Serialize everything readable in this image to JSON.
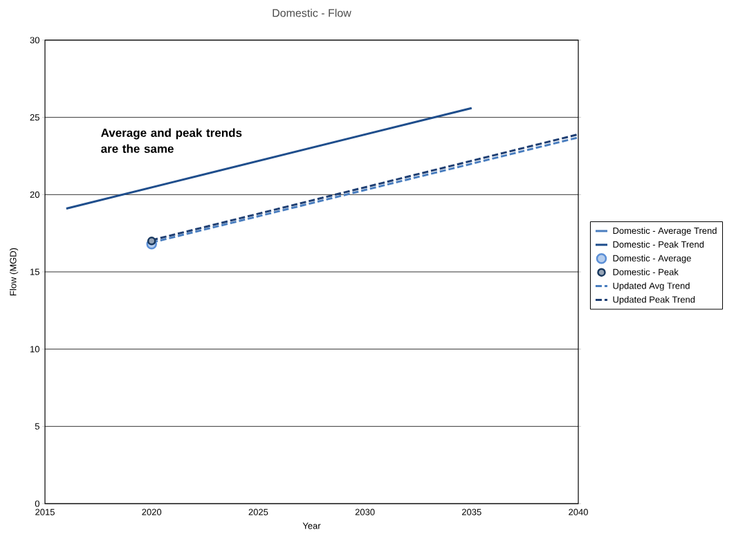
{
  "chart_data": {
    "type": "line",
    "title": "Domestic - Flow",
    "xlabel": "Year",
    "ylabel": "Flow (MGD)",
    "xlim": [
      2015,
      2040
    ],
    "xticks": [
      2015,
      2020,
      2025,
      2030,
      2035,
      2040
    ],
    "ylim": [
      0,
      30
    ],
    "yticks": [
      0,
      5,
      10,
      15,
      20,
      25,
      30
    ],
    "grid": "y",
    "legend": "right",
    "annotations": [
      "**Average and peak trends are the same**"
    ],
    "series": [
      {
        "name": "Domestic - Average Trend",
        "color": "#4a7ebf",
        "line_style": "solid",
        "marker": "none"
      },
      {
        "name": "Domestic - Peak Trend",
        "color": "#1f4e8c",
        "line_style": "solid",
        "marker": "none",
        "x": [
          2016,
          2035
        ],
        "values": [
          19.1,
          25.6
        ]
      },
      {
        "name": "Domestic - Average",
        "type": "scatter",
        "color": "#5b8fd6",
        "marker": "circle",
        "x": [
          2020
        ],
        "values": [
          16.8
        ]
      },
      {
        "name": "Domestic - Peak",
        "type": "scatter",
        "color": "#17375e",
        "marker": "circle",
        "x": [
          2020
        ],
        "values": [
          17.0
        ]
      },
      {
        "name": "Updated Avg Trend",
        "color": "#4a7ebf",
        "line_style": "dashed",
        "marker": "none",
        "x": [
          2020,
          2040
        ],
        "values": [
          16.9,
          23.7
        ]
      },
      {
        "name": "Updated Peak Trend",
        "color": "#1f3f73",
        "line_style": "dashed",
        "marker": "none",
        "x": [
          2020,
          2040
        ],
        "values": [
          17.05,
          23.9
        ]
      }
    ]
  }
}
